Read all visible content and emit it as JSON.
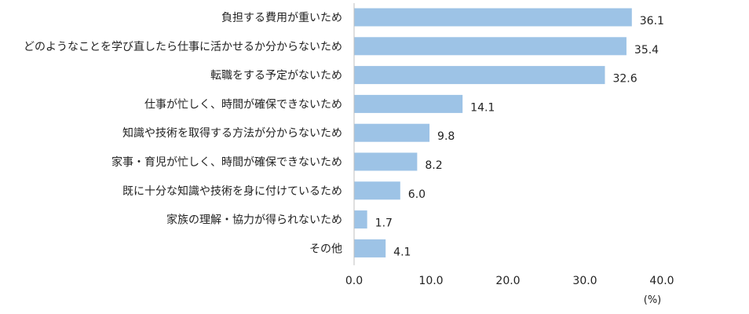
{
  "chart_data": {
    "type": "bar",
    "orientation": "horizontal",
    "categories": [
      "負担する費用が重いため",
      "どのようなことを学び直したら仕事に活かせるか分からないため",
      "転職をする予定がないため",
      "仕事が忙しく、時間が確保できないため",
      "知識や技術を取得する方法が分からないため",
      "家事・育児が忙しく、時間が確保できないため",
      "既に十分な知識や技術を身に付けているため",
      "家族の理解・協力が得られないため",
      "その他"
    ],
    "values": [
      36.1,
      35.4,
      32.6,
      14.1,
      9.8,
      8.2,
      6.0,
      1.7,
      4.1
    ],
    "value_labels": [
      "36.1",
      "35.4",
      "32.6",
      "14.1",
      "9.8",
      "8.2",
      "6.0",
      "1.7",
      "4.1"
    ],
    "xlim": [
      0,
      40
    ],
    "x_ticks": [
      "0.0",
      "10.0",
      "20.0",
      "30.0",
      "40.0"
    ],
    "x_tick_values": [
      0,
      10,
      20,
      30,
      40
    ],
    "unit": "(%)",
    "grid": false,
    "bar_color": "#9DC3E6",
    "axis_color": "#BFBFBF"
  }
}
